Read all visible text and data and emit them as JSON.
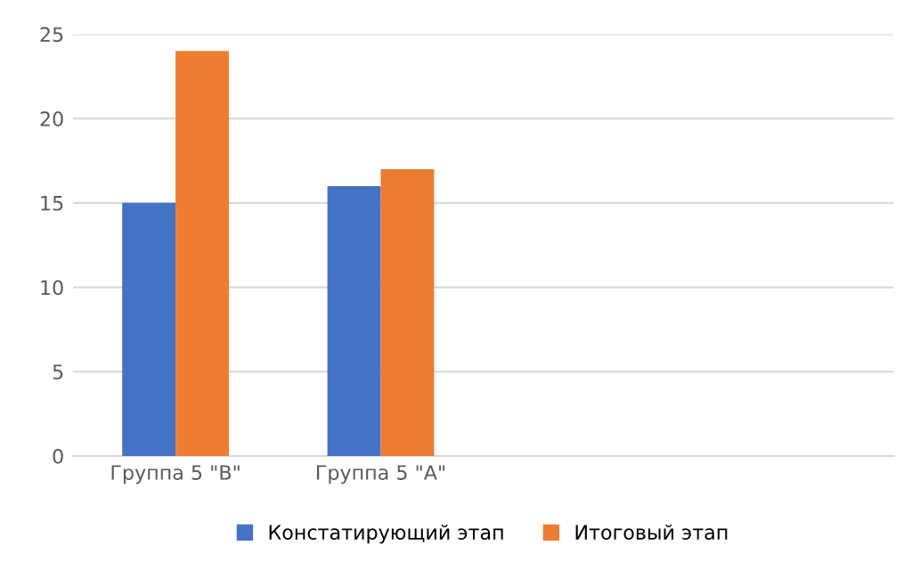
{
  "chart_data": {
    "type": "bar",
    "categories": [
      "Группа 5 \"В\"",
      "Группа 5 \"А\"",
      null,
      null
    ],
    "series": [
      {
        "name": "Констатирующий этап",
        "color": "#4472c4",
        "values": [
          15,
          16,
          null,
          null
        ]
      },
      {
        "name": "Итоговый этап",
        "color": "#ed7d31",
        "values": [
          24,
          17,
          null,
          null
        ]
      }
    ],
    "ylim": [
      0,
      25
    ],
    "yticks": [
      0,
      5,
      10,
      15,
      20,
      25
    ],
    "grid": "y",
    "legend": "bottom"
  }
}
